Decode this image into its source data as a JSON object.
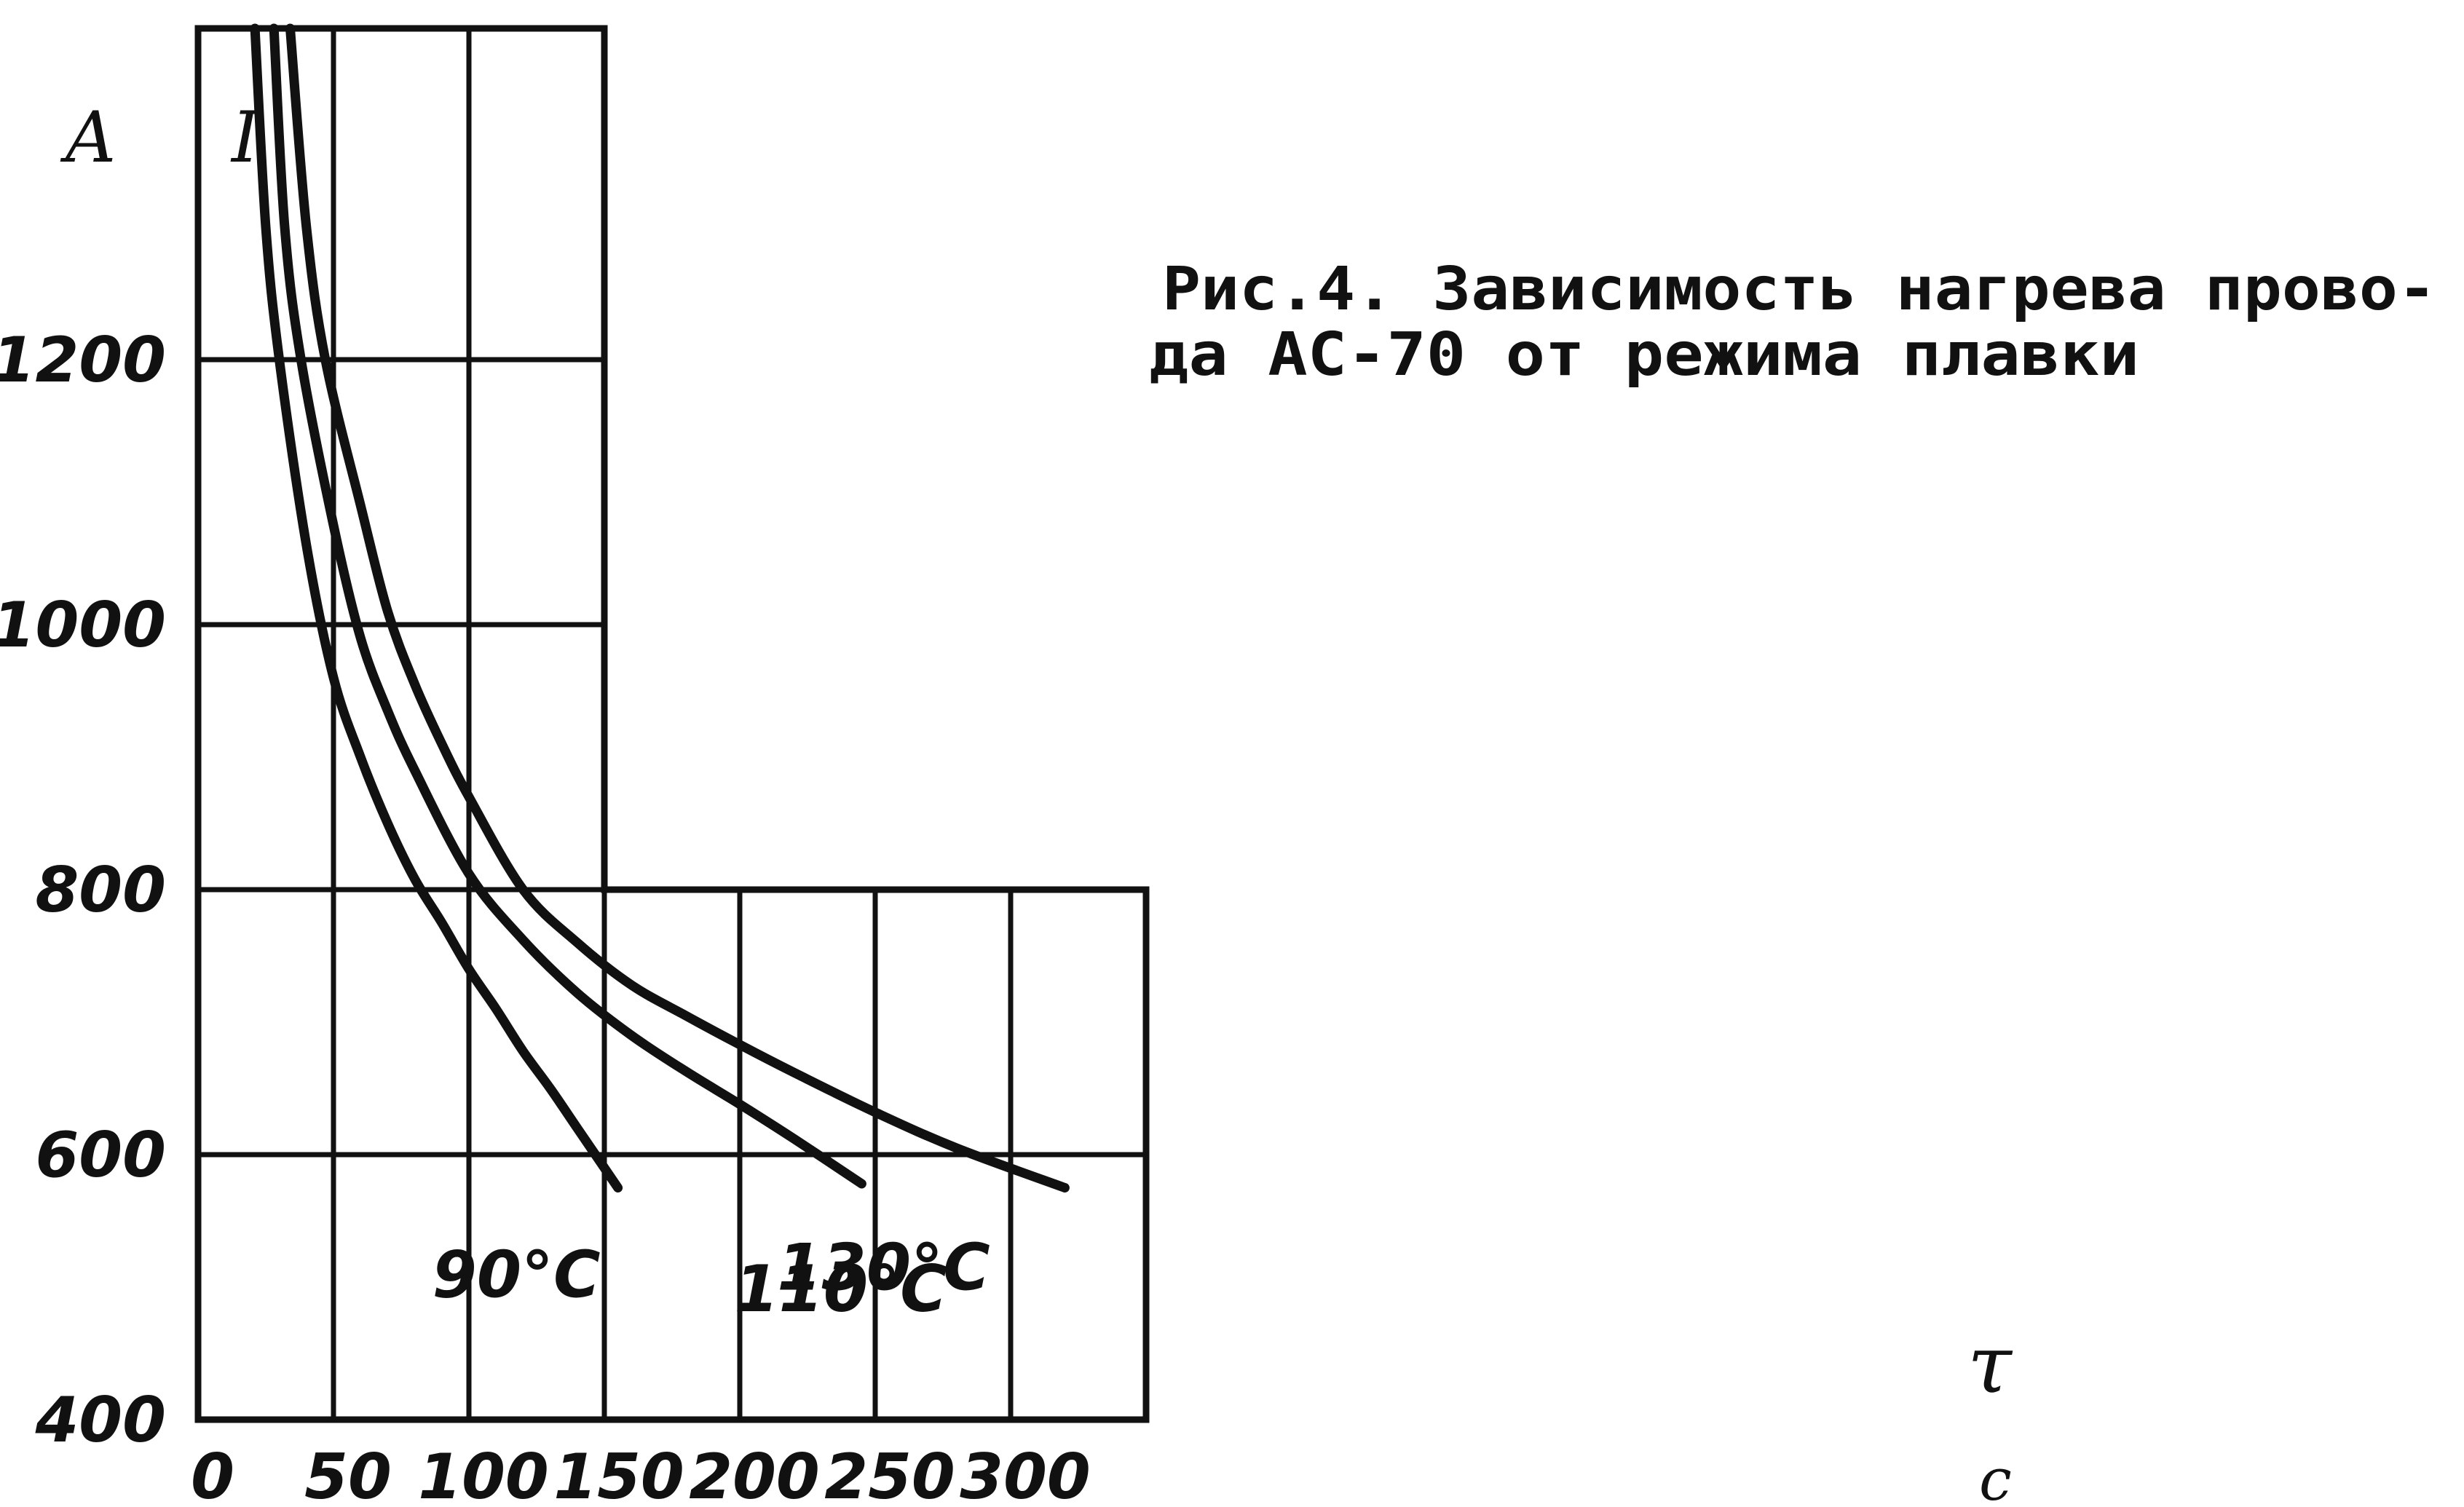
{
  "caption": {
    "line1": "Рис.4. Зависимость нагрева прово-",
    "line2": "да АС-70 от режима плавки"
  },
  "chart_data": {
    "type": "line",
    "title": "Рис.4. Зависимость нагрева провода АС-70 от режима плавки",
    "xlabel": "τ",
    "x_unit": "c",
    "ylabel": "I",
    "y_unit": "A",
    "xlim": [
      0,
      350
    ],
    "ylim": [
      400,
      1450
    ],
    "x_ticks": [
      "0",
      "50",
      "100",
      "150",
      "200",
      "250",
      "300"
    ],
    "y_ticks": [
      "400",
      "600",
      "800",
      "1000",
      "1200"
    ],
    "grid": true,
    "series": [
      {
        "name": "90°C",
        "points": [
          [
            21,
            1450
          ],
          [
            25,
            1300
          ],
          [
            30,
            1200
          ],
          [
            40,
            1060
          ],
          [
            50,
            960
          ],
          [
            60,
            900
          ],
          [
            70,
            850
          ],
          [
            80,
            808
          ],
          [
            90,
            775
          ],
          [
            100,
            740
          ],
          [
            110,
            710
          ],
          [
            120,
            678
          ],
          [
            130,
            650
          ],
          [
            140,
            620
          ],
          [
            155,
            575
          ]
        ]
      },
      {
        "name": "110°C",
        "points": [
          [
            28,
            1450
          ],
          [
            32,
            1300
          ],
          [
            38,
            1200
          ],
          [
            50,
            1075
          ],
          [
            60,
            990
          ],
          [
            70,
            935
          ],
          [
            80,
            890
          ],
          [
            100,
            812
          ],
          [
            120,
            762
          ],
          [
            140,
            722
          ],
          [
            160,
            690
          ],
          [
            180,
            663
          ],
          [
            200,
            638
          ],
          [
            220,
            612
          ],
          [
            245,
            578
          ]
        ]
      },
      {
        "name": "130°C",
        "points": [
          [
            34,
            1450
          ],
          [
            40,
            1300
          ],
          [
            47,
            1200
          ],
          [
            60,
            1090
          ],
          [
            70,
            1010
          ],
          [
            80,
            955
          ],
          [
            90,
            910
          ],
          [
            100,
            870
          ],
          [
            120,
            800
          ],
          [
            140,
            760
          ],
          [
            160,
            728
          ],
          [
            180,
            705
          ],
          [
            200,
            683
          ],
          [
            220,
            662
          ],
          [
            250,
            632
          ],
          [
            280,
            605
          ],
          [
            320,
            575
          ]
        ]
      }
    ]
  }
}
